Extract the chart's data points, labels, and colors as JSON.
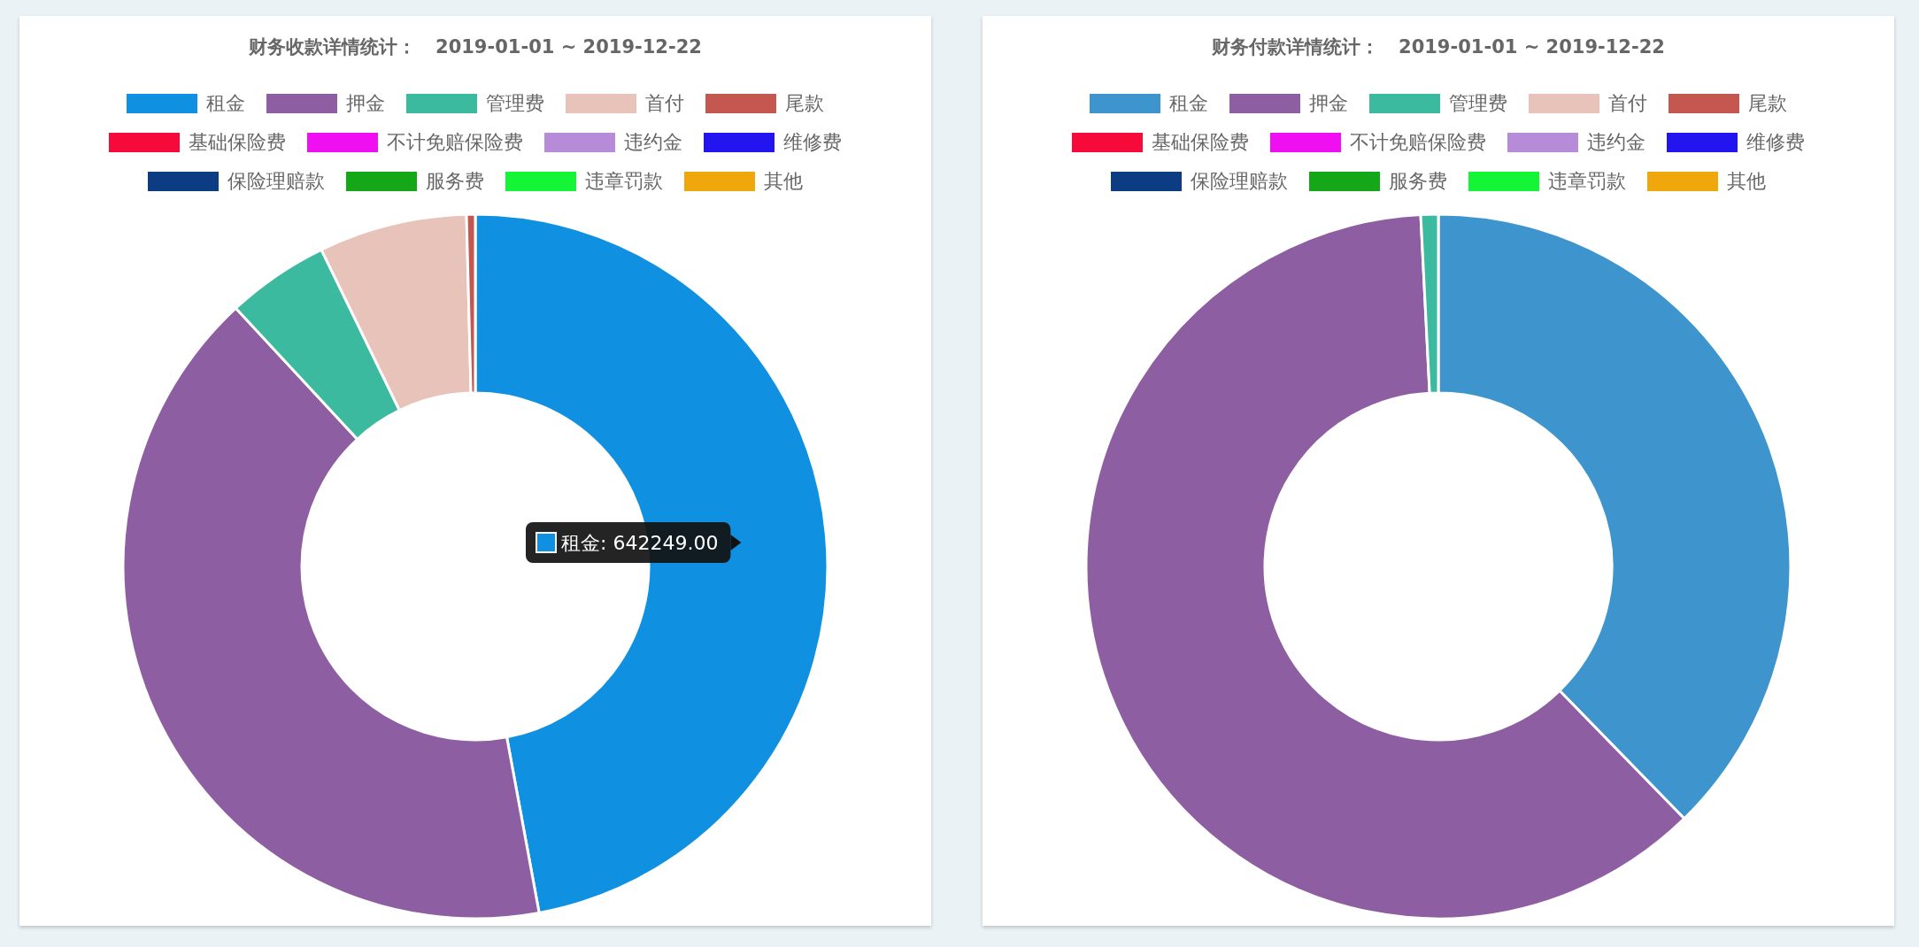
{
  "chart_data": [
    {
      "type": "donut",
      "title": "财务收款详情统计：   2019-01-01 ~ 2019-12-22",
      "categories": [
        "租金",
        "押金",
        "管理费",
        "首付",
        "尾款",
        "基础保险费",
        "不计免赔保险费",
        "违约金",
        "维修费",
        "保险理赔款",
        "服务费",
        "违章罚款",
        "其他"
      ],
      "values": [
        47.1,
        41.0,
        4.7,
        6.8,
        0.4,
        0,
        0,
        0,
        0,
        0,
        0,
        0,
        0
      ],
      "colors": [
        "#1090e0",
        "#8e5ea2",
        "#3cba9f",
        "#e8c3b9",
        "#c45850",
        "#f50a3a",
        "#f00ff0",
        "#b68bd8",
        "#2315f0",
        "#0c3d82",
        "#14a717",
        "#14f538",
        "#f0a70b"
      ],
      "legend": "top",
      "annotations": [
        "租金: 642249.00"
      ]
    },
    {
      "type": "donut",
      "title": "财务付款详情统计：   2019-01-01 ~ 2019-12-22",
      "categories": [
        "租金",
        "押金",
        "管理费",
        "首付",
        "尾款",
        "基础保险费",
        "不计免赔保险费",
        "违约金",
        "维修费",
        "保险理赔款",
        "服务费",
        "违章罚款",
        "其他"
      ],
      "values": [
        37.7,
        61.5,
        0.8,
        0,
        0,
        0,
        0,
        0,
        0,
        0,
        0,
        0,
        0
      ],
      "colors": [
        "#3e95cd",
        "#8e5ea2",
        "#3cba9f",
        "#e8c3b9",
        "#c45850",
        "#f50a3a",
        "#f00ff0",
        "#b68bd8",
        "#2315f0",
        "#0c3d82",
        "#14a717",
        "#14f538",
        "#f0a70b"
      ],
      "legend": "top"
    }
  ]
}
